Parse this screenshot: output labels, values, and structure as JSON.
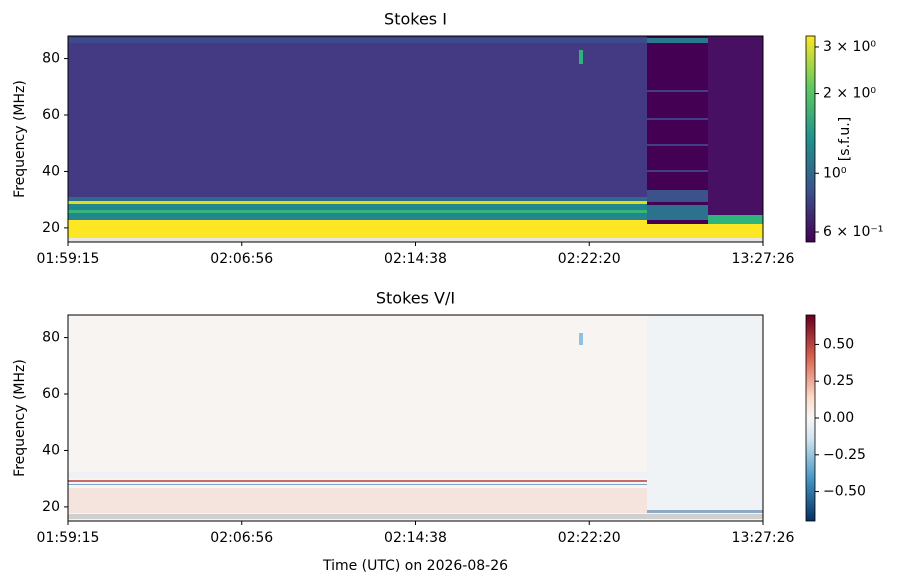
{
  "chart_data": [
    {
      "type": "heatmap",
      "title": "Stokes I",
      "ylabel": "Frequency (MHz)",
      "ylim": [
        15,
        88
      ],
      "yticks": [
        20,
        40,
        60,
        80
      ],
      "xtick_labels": [
        "01:59:15",
        "02:06:56",
        "02:14:38",
        "02:22:20",
        "13:27:26"
      ],
      "colorbar": {
        "label": "[s.f.u.]",
        "log": true,
        "clim": [
          0.55,
          3.3
        ],
        "colormap": "viridis",
        "ticks": [
          {
            "value": 3,
            "label": "3 × 10⁰"
          },
          {
            "value": 2,
            "label": "2 × 10⁰"
          },
          {
            "value": 1,
            "label": "10⁰"
          },
          {
            "value": 0.6,
            "label": "6 × 10⁻¹"
          }
        ]
      }
    },
    {
      "type": "heatmap",
      "title": "Stokes V/I",
      "ylabel": "Frequency (MHz)",
      "xlabel": "Time (UTC) on 2026-08-26",
      "ylim": [
        15,
        88
      ],
      "yticks": [
        20,
        40,
        60,
        80
      ],
      "xtick_labels": [
        "01:59:15",
        "02:06:56",
        "02:14:38",
        "02:22:20",
        "13:27:26"
      ],
      "colorbar": {
        "log": false,
        "clim": [
          -0.7,
          0.7
        ],
        "colormap": "RdBu_r",
        "ticks": [
          {
            "value": 0.5,
            "label": "0.50"
          },
          {
            "value": 0.25,
            "label": "0.25"
          },
          {
            "value": 0,
            "label": "0.00"
          },
          {
            "value": -0.25,
            "label": "−0.25"
          },
          {
            "value": -0.5,
            "label": "−0.50"
          }
        ]
      }
    }
  ]
}
